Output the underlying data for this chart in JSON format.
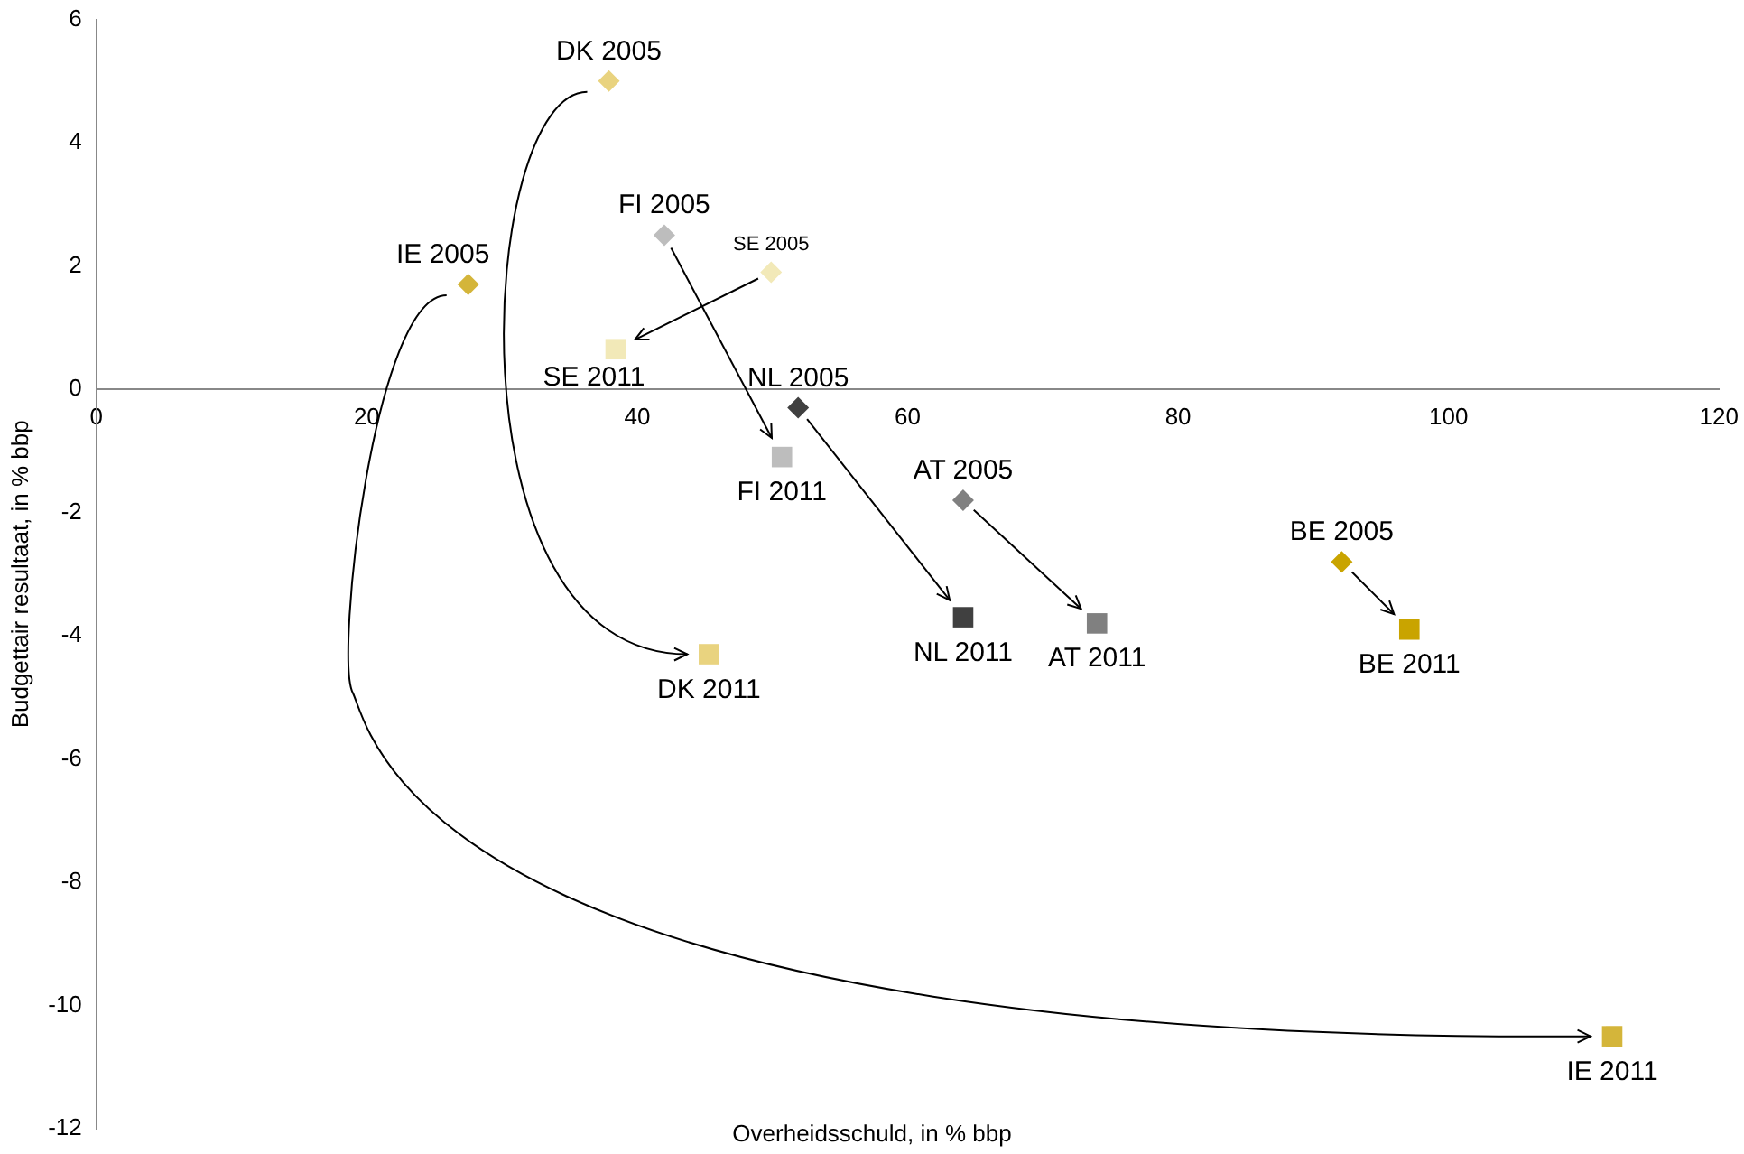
{
  "chart_data": {
    "type": "scatter",
    "xlabel": "Overheidsschuld, in % bbp",
    "ylabel": "Budgettair resultaat, in % bbp",
    "xlim": [
      0,
      120
    ],
    "xticks": [
      0,
      20,
      40,
      60,
      80,
      100,
      120
    ],
    "ylim": [
      -12,
      6
    ],
    "yticks": [
      -12,
      -10,
      -8,
      -6,
      -4,
      -2,
      0,
      2,
      4,
      6
    ],
    "grid": false,
    "legend": false,
    "series": [
      {
        "marker": "diamond",
        "x": [
          37.9,
          42,
          49.9,
          27.5,
          51.9,
          64.1,
          92.1
        ],
        "values": [
          5,
          2.5,
          1.9,
          1.7,
          -0.3,
          -1.8,
          -2.8
        ],
        "colors": [
          "#e9d37f",
          "#bdbdbd",
          "#f2e9b8",
          "#d4b53a",
          "#404040",
          "#808080",
          "#c9a400"
        ]
      },
      {
        "marker": "square",
        "x": [
          45.3,
          50.7,
          38.4,
          112.1,
          64.1,
          74,
          97.1
        ],
        "values": [
          -4.3,
          -1.1,
          0.65,
          -10.5,
          -3.7,
          -3.8,
          -3.9
        ],
        "colors": [
          "#e9d37f",
          "#bdbdbd",
          "#f2e9b8",
          "#d4b53a",
          "#404040",
          "#808080",
          "#c9a400"
        ]
      }
    ],
    "annotations": [
      {
        "text": "DK 2005",
        "x": 37.9,
        "y": 5
      },
      {
        "text": "FI 2005",
        "x": 42,
        "y": 2.5
      },
      {
        "text": "SE 2005",
        "x": 49.9,
        "y": 1.9
      },
      {
        "text": "IE 2005",
        "x": 27.5,
        "y": 1.7
      },
      {
        "text": "NL 2005",
        "x": 51.9,
        "y": -0.3
      },
      {
        "text": "AT 2005",
        "x": 64.1,
        "y": -1.8
      },
      {
        "text": "BE 2005",
        "x": 92.1,
        "y": -2.8
      },
      {
        "text": "DK 2011",
        "x": 45.3,
        "y": -4.3
      },
      {
        "text": "FI 2011",
        "x": 50.7,
        "y": -1.1
      },
      {
        "text": "SE 2011",
        "x": 38.4,
        "y": 0.65
      },
      {
        "text": "IE 2011",
        "x": 112.1,
        "y": -10.5
      },
      {
        "text": "NL 2011",
        "x": 64.1,
        "y": -3.7
      },
      {
        "text": "AT 2011",
        "x": 74,
        "y": -3.8
      },
      {
        "text": "BE 2011",
        "x": 97.1,
        "y": -3.9
      }
    ]
  }
}
